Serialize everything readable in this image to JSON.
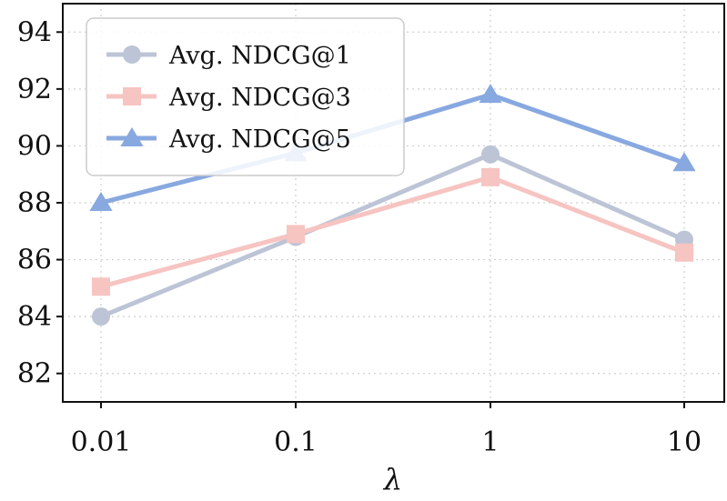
{
  "chart_data": {
    "type": "line",
    "x": [
      "0.01",
      "0.1",
      "1",
      "10"
    ],
    "xlabel": "λ",
    "ylabel": "",
    "ylim": [
      81,
      95
    ],
    "yticks": [
      82,
      84,
      86,
      88,
      90,
      92,
      94
    ],
    "grid": true,
    "legend_position": "top-left",
    "series": [
      {
        "name": "Avg. NDCG@1",
        "values": [
          84.0,
          86.8,
          89.7,
          86.7
        ],
        "color": "#bcc4d6",
        "marker": "circle"
      },
      {
        "name": "Avg. NDCG@3",
        "values": [
          85.05,
          86.9,
          88.9,
          86.25
        ],
        "color": "#f6c4c1",
        "marker": "square"
      },
      {
        "name": "Avg. NDCG@5",
        "values": [
          88.0,
          89.75,
          91.8,
          89.4
        ],
        "color": "#88a8e0",
        "marker": "triangle"
      }
    ]
  }
}
